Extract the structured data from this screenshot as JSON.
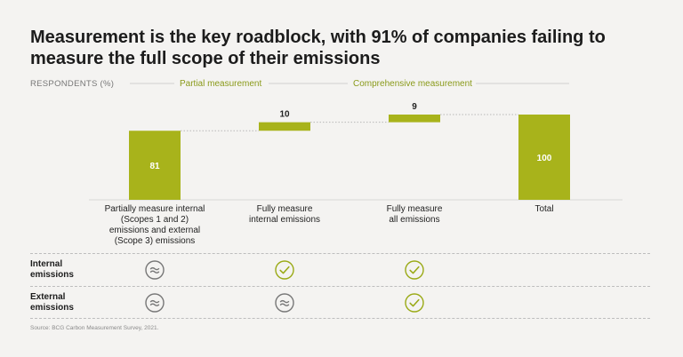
{
  "title_lines": [
    "Measurement is the key roadblock, with 91% of companies failing to",
    "measure the full scope of their emissions"
  ],
  "y_axis_label": "RESPONDENTS (%)",
  "groups": {
    "partial": "Partial measurement",
    "comprehensive": "Comprehensive measurement"
  },
  "chart_data": {
    "type": "bar",
    "subtype": "waterfall",
    "title": "Measurement is the key roadblock, with 91% of companies failing to measure the full scope of their emissions",
    "ylabel": "RESPONDENTS (%)",
    "ylim": [
      0,
      100
    ],
    "categories": [
      [
        "Partially measure internal",
        "(Scopes 1 and 2)",
        "emissions and external",
        "(Scope 3) emissions"
      ],
      [
        "Fully measure",
        "internal emissions"
      ],
      [
        "Fully measure",
        "all emissions"
      ],
      [
        "Total"
      ]
    ],
    "bars": [
      {
        "start": 0,
        "end": 81,
        "label": "81"
      },
      {
        "start": 81,
        "end": 91,
        "label": "10"
      },
      {
        "start": 91,
        "end": 100,
        "label": "9"
      },
      {
        "start": 0,
        "end": 100,
        "label": "100"
      }
    ],
    "color": "#a8b31b"
  },
  "rows": [
    {
      "label_lines": [
        "Internal",
        "emissions"
      ],
      "status": [
        "partial",
        "full",
        "full"
      ]
    },
    {
      "label_lines": [
        "External",
        "emissions"
      ],
      "status": [
        "partial",
        "partial",
        "full"
      ]
    }
  ],
  "colors": {
    "accent": "#a8b31b",
    "check": "#9aaa16",
    "partial": "#777777"
  },
  "source": "Source: BCG Carbon Measurement Survey, 2021."
}
